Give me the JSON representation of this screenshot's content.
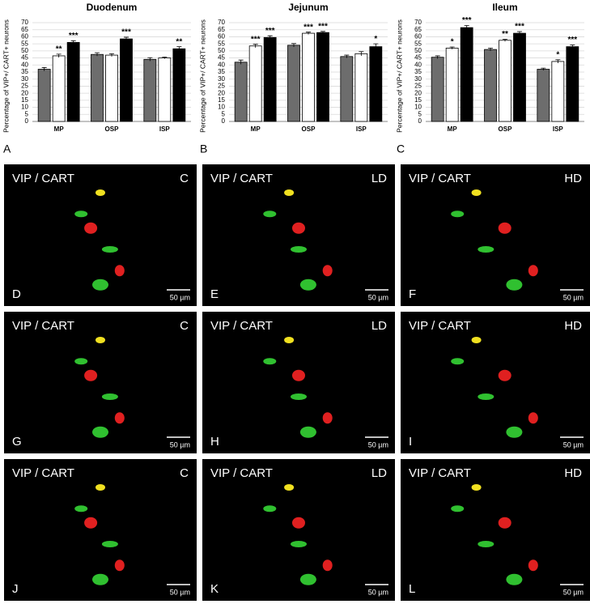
{
  "chart_data": [
    {
      "type": "bar",
      "title": "Duodenum",
      "panel": "A",
      "ylabel": "Percentage of VIP+/ CART+ neurons",
      "categories": [
        "MP",
        "OSP",
        "ISP"
      ],
      "ylim": [
        0,
        70
      ],
      "yticks": [
        0,
        5,
        10,
        15,
        20,
        25,
        30,
        35,
        40,
        45,
        50,
        55,
        60,
        65,
        70
      ],
      "grid": true,
      "series": [
        {
          "color": "#6d6d6d",
          "values": [
            37,
            47.5,
            44
          ],
          "errors": [
            1.2,
            1.2,
            1.2
          ],
          "annotations": [
            null,
            null,
            null
          ]
        },
        {
          "color": "#ffffff",
          "values": [
            46.5,
            47,
            45
          ],
          "errors": [
            1.2,
            1.0,
            0.6
          ],
          "annotations": [
            "**",
            null,
            null
          ]
        },
        {
          "color": "#000000",
          "values": [
            56,
            58.5,
            51.5
          ],
          "errors": [
            1.2,
            1.2,
            1.5
          ],
          "annotations": [
            "***",
            "***",
            "**"
          ]
        }
      ]
    },
    {
      "type": "bar",
      "title": "Jejunum",
      "panel": "B",
      "ylabel": "Percentage of VIP+/ CART+ neurons",
      "categories": [
        "MP",
        "OSP",
        "ISP"
      ],
      "ylim": [
        0,
        70
      ],
      "yticks": [
        0,
        5,
        10,
        15,
        20,
        25,
        30,
        35,
        40,
        45,
        50,
        55,
        60,
        65,
        70
      ],
      "grid": true,
      "series": [
        {
          "color": "#6d6d6d",
          "values": [
            42,
            54,
            46
          ],
          "errors": [
            1.5,
            1.2,
            1.0
          ],
          "annotations": [
            null,
            null,
            null
          ]
        },
        {
          "color": "#ffffff",
          "values": [
            53.5,
            62.5,
            48
          ],
          "errors": [
            1.2,
            0.8,
            1.5
          ],
          "annotations": [
            "***",
            "***",
            null
          ]
        },
        {
          "color": "#000000",
          "values": [
            59.5,
            63,
            53
          ],
          "errors": [
            1.2,
            0.8,
            2.0
          ],
          "annotations": [
            "***",
            "***",
            "*"
          ]
        }
      ]
    },
    {
      "type": "bar",
      "title": "Ileum",
      "panel": "C",
      "ylabel": "Percentage of VIP+/ CART+ neurons",
      "categories": [
        "MP",
        "OSP",
        "ISP"
      ],
      "ylim": [
        0,
        70
      ],
      "yticks": [
        0,
        5,
        10,
        15,
        20,
        25,
        30,
        35,
        40,
        45,
        50,
        55,
        60,
        65,
        70
      ],
      "grid": true,
      "series": [
        {
          "color": "#6d6d6d",
          "values": [
            45.5,
            51,
            37
          ],
          "errors": [
            1.0,
            1.0,
            0.8
          ],
          "annotations": [
            null,
            null,
            null
          ]
        },
        {
          "color": "#ffffff",
          "values": [
            52,
            57.5,
            42.5
          ],
          "errors": [
            0.8,
            0.8,
            1.2
          ],
          "annotations": [
            "*",
            "**",
            "*"
          ]
        },
        {
          "color": "#000000",
          "values": [
            66.5,
            62.5,
            53
          ],
          "errors": [
            1.5,
            1.2,
            1.2
          ],
          "annotations": [
            "***",
            "***",
            "***"
          ]
        }
      ]
    }
  ],
  "panels": [
    {
      "stain": "VIP / CART",
      "group": "C",
      "letter": "D",
      "scale": "50 µm"
    },
    {
      "stain": "VIP / CART",
      "group": "LD",
      "letter": "E",
      "scale": "50 µm"
    },
    {
      "stain": "VIP / CART",
      "group": "HD",
      "letter": "F",
      "scale": "50 µm"
    },
    {
      "stain": "VIP / CART",
      "group": "C",
      "letter": "G",
      "scale": "50 µm"
    },
    {
      "stain": "VIP / CART",
      "group": "LD",
      "letter": "H",
      "scale": "50 µm"
    },
    {
      "stain": "VIP / CART",
      "group": "HD",
      "letter": "I",
      "scale": "50 µm"
    },
    {
      "stain": "VIP / CART",
      "group": "C",
      "letter": "J",
      "scale": "50 µm"
    },
    {
      "stain": "VIP / CART",
      "group": "LD",
      "letter": "K",
      "scale": "50 µm"
    },
    {
      "stain": "VIP / CART",
      "group": "HD",
      "letter": "L",
      "scale": "50 µm"
    }
  ]
}
